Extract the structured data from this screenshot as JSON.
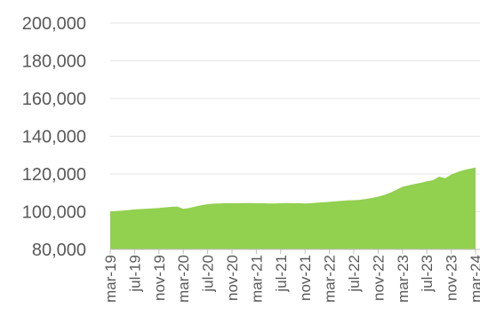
{
  "chart_data": {
    "type": "area",
    "ylim": [
      80000,
      200000
    ],
    "y_ticks": [
      80000,
      100000,
      120000,
      140000,
      160000,
      180000,
      200000
    ],
    "y_tick_labels": [
      "80,000",
      "100,000",
      "120,000",
      "140,000",
      "160,000",
      "180,000",
      "200,000"
    ],
    "x_tick_labels": [
      "mar-19",
      "jul-19",
      "nov-19",
      "mar-20",
      "jul-20",
      "nov-20",
      "mar-21",
      "jul-21",
      "nov-21",
      "mar-22",
      "jul-22",
      "nov-22",
      "mar-23",
      "jul-23",
      "nov-23",
      "mar-24"
    ],
    "grid": true,
    "legend": "none",
    "fill_color": "#92d050",
    "series": [
      {
        "x": [
          "mar-19",
          "apr-19",
          "may-19",
          "jun-19",
          "jul-19",
          "aug-19",
          "sep-19",
          "oct-19",
          "nov-19",
          "dec-19",
          "jan-20",
          "feb-20",
          "mar-20",
          "apr-20",
          "may-20",
          "jun-20",
          "jul-20",
          "aug-20",
          "sep-20",
          "oct-20",
          "nov-20",
          "dec-20",
          "jan-21",
          "feb-21",
          "mar-21",
          "apr-21",
          "may-21",
          "jun-21",
          "jul-21",
          "aug-21",
          "sep-21",
          "oct-21",
          "nov-21",
          "dec-21",
          "jan-22",
          "feb-22",
          "mar-22",
          "apr-22",
          "may-22",
          "jun-22",
          "jul-22",
          "aug-22",
          "sep-22",
          "oct-22",
          "nov-22",
          "dec-22",
          "jan-23",
          "feb-23",
          "mar-23",
          "apr-23",
          "may-23",
          "jun-23",
          "jul-23",
          "aug-23",
          "sep-23",
          "oct-23",
          "nov-23",
          "dec-23",
          "jan-24",
          "feb-24",
          "mar-24"
        ],
        "values": [
          100200,
          100400,
          100600,
          100900,
          101200,
          101400,
          101600,
          101800,
          102000,
          102300,
          102600,
          102800,
          101500,
          102000,
          102800,
          103500,
          104000,
          104300,
          104400,
          104500,
          104500,
          104500,
          104600,
          104600,
          104500,
          104500,
          104400,
          104400,
          104500,
          104600,
          104500,
          104500,
          104400,
          104500,
          104800,
          105000,
          105200,
          105500,
          105800,
          106000,
          106100,
          106300,
          106800,
          107300,
          108000,
          108900,
          110100,
          111600,
          113200,
          114000,
          114700,
          115300,
          116100,
          116700,
          118600,
          117800,
          119700,
          121000,
          122000,
          122800,
          123400
        ]
      }
    ]
  }
}
